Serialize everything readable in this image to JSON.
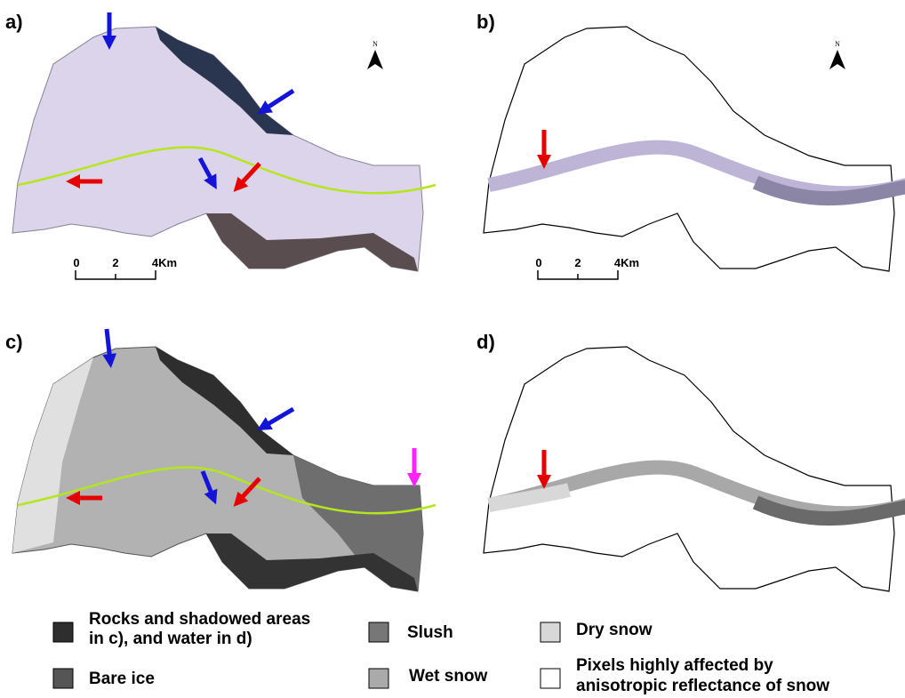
{
  "panels": [
    {
      "label": "a)",
      "north": "N",
      "scale": [
        "0",
        "2",
        "4Km"
      ]
    },
    {
      "label": "b)",
      "north": "N",
      "scale": [
        "0",
        "2",
        "4Km"
      ]
    },
    {
      "label": "c)"
    },
    {
      "label": "d)"
    }
  ],
  "legend": [
    {
      "lines": [
        "Rocks and shadowed areas",
        "in c), and water in d)"
      ]
    },
    {
      "lines": [
        "Bare ice"
      ]
    },
    {
      "lines": [
        "Slush"
      ]
    },
    {
      "lines": [
        "Wet snow"
      ]
    },
    {
      "lines": [
        "Dry snow"
      ]
    },
    {
      "lines": [
        "Pixels highly affected by",
        "anisotropic reflectance of snow"
      ]
    }
  ]
}
